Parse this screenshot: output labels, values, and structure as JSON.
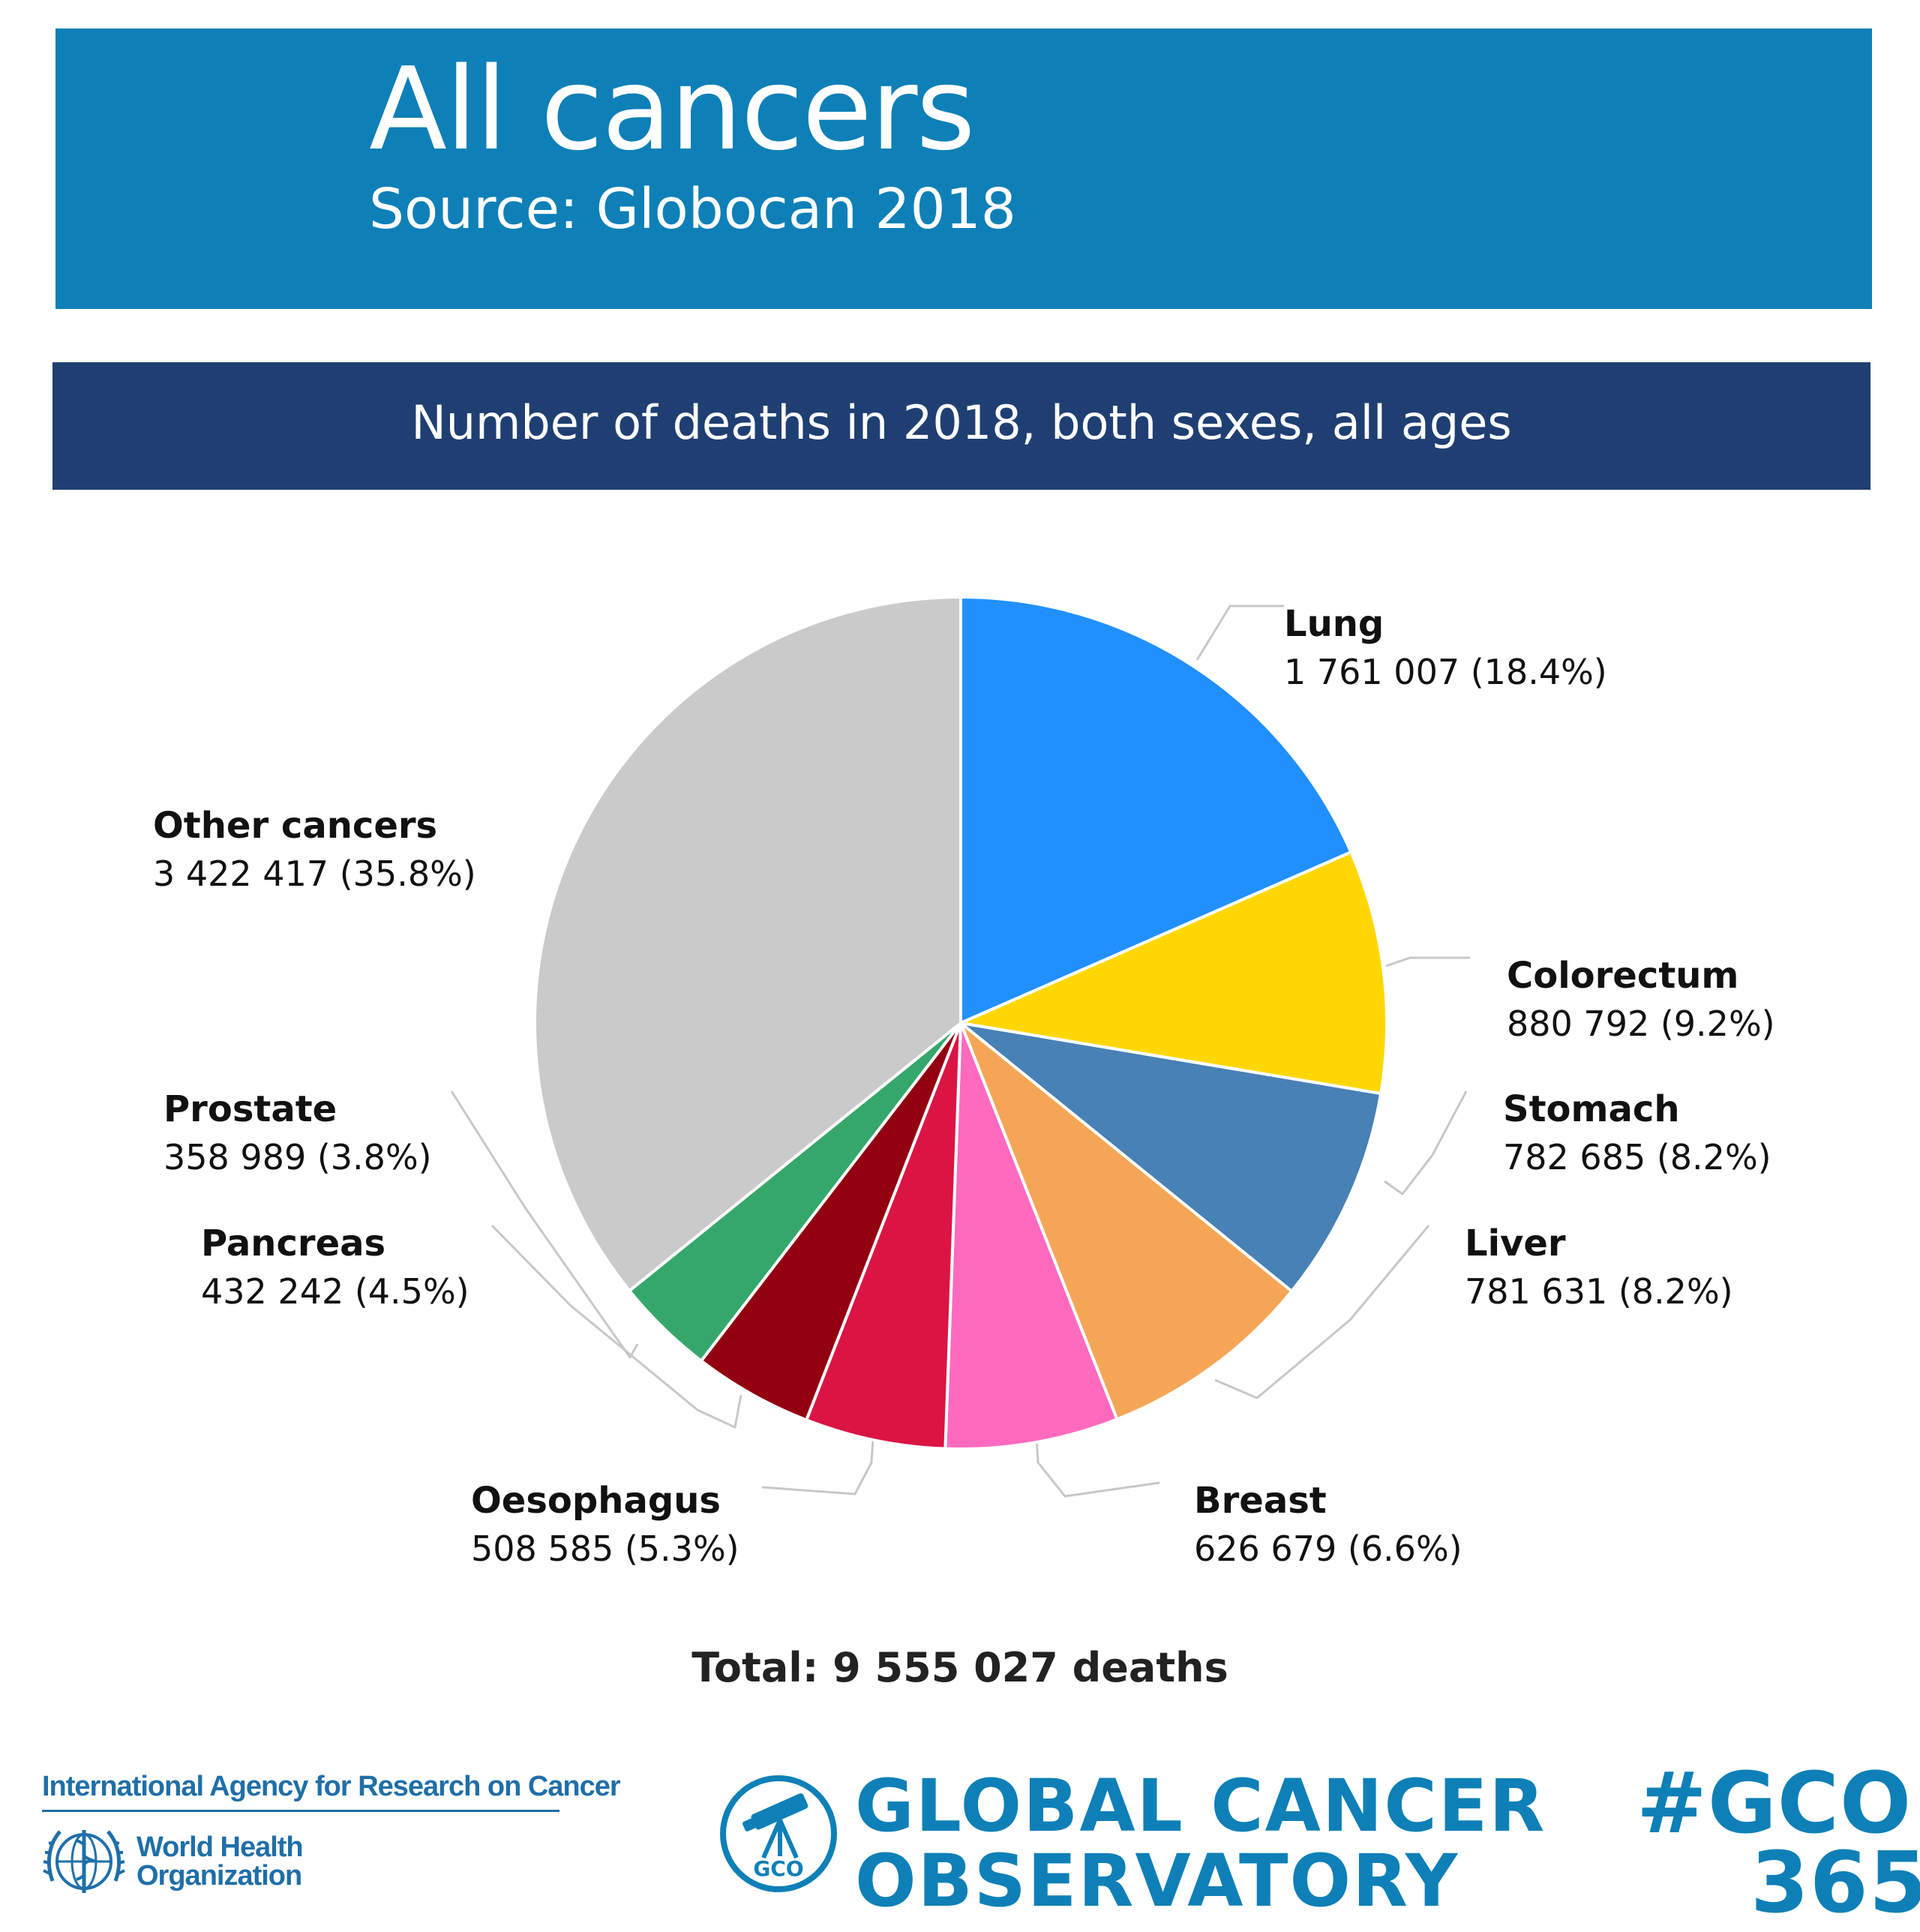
{
  "header": {
    "title": "All cancers",
    "source": "Source: Globocan 2018"
  },
  "subheader": "Number of deaths in 2018, both sexes, all ages",
  "chart_data": {
    "type": "pie",
    "title": "Number of deaths in 2018, both sexes, all ages",
    "slices": [
      {
        "name": "Lung",
        "value": 1761007,
        "value_label": "1 761 007 (18.4%)",
        "percent": 18.4,
        "color": "#2190fd"
      },
      {
        "name": "Colorectum",
        "value": 880792,
        "value_label": "880 792 (9.2%)",
        "percent": 9.2,
        "color": "#fed702"
      },
      {
        "name": "Stomach",
        "value": 782685,
        "value_label": "782 685 (8.2%)",
        "percent": 8.2,
        "color": "#4781b5"
      },
      {
        "name": "Liver",
        "value": 781631,
        "value_label": "781 631 (8.2%)",
        "percent": 8.2,
        "color": "#f4a656"
      },
      {
        "name": "Breast",
        "value": 626679,
        "value_label": "626 679 (6.6%)",
        "percent": 6.6,
        "color": "#fe6abe"
      },
      {
        "name": "Oesophagus",
        "value": 508585,
        "value_label": "508 585 (5.3%)",
        "percent": 5.3,
        "color": "#db1444"
      },
      {
        "name": "Pancreas",
        "value": 432242,
        "value_label": "432 242 (4.5%)",
        "percent": 4.5,
        "color": "#930010"
      },
      {
        "name": "Prostate",
        "value": 358989,
        "value_label": "358 989 (3.8%)",
        "percent": 3.8,
        "color": "#36a76a"
      },
      {
        "name": "Other cancers",
        "value": 3422417,
        "value_label": "3 422 417 (35.8%)",
        "percent": 35.8,
        "color": "#cacaca"
      }
    ],
    "total": 9555027,
    "total_label": "Total: 9 555 027 deaths"
  },
  "footer": {
    "iarc": "International Agency for Research on Cancer",
    "who_line1": "World Health",
    "who_line2": "Organization",
    "gco_emblem_text": "GCO",
    "gco_line1": "GLOBAL CANCER",
    "gco_line2": "OBSERVATORY",
    "hashtag_line1": "#GCO",
    "hashtag_line2": "365"
  },
  "colors": {
    "title_band": "#0e80b7",
    "subheader_band": "#1f3f73",
    "brand_blue": "#0e80b7",
    "iarc_blue": "#1f6fa8",
    "leader_line": "#c8c8c8"
  },
  "icons": [
    "who-emblem-icon",
    "gco-telescope-icon"
  ]
}
